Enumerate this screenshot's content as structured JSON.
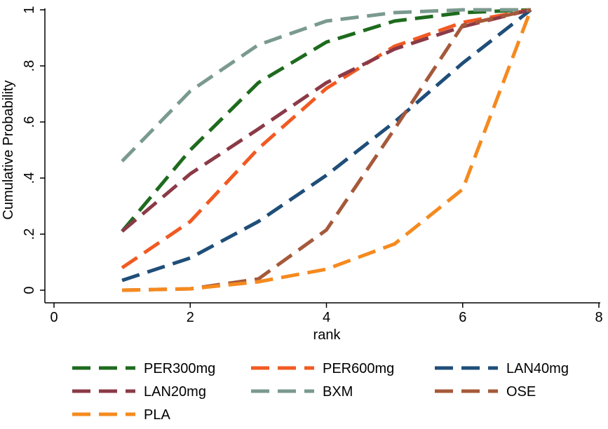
{
  "chart_data": {
    "type": "line",
    "xlabel": "rank",
    "ylabel": "Cumulative Probability",
    "xlim": [
      0,
      8
    ],
    "ylim": [
      0,
      1
    ],
    "xticks": [
      0,
      2,
      4,
      6,
      8
    ],
    "xtick_labels": [
      "0",
      "2",
      "4",
      "6",
      "8"
    ],
    "yticks": [
      0,
      0.2,
      0.4,
      0.6,
      0.8,
      1
    ],
    "ytick_labels": [
      "0",
      ".2",
      ".4",
      ".6",
      ".8",
      "1"
    ],
    "grid": false,
    "legend_position": "bottom",
    "line_style": "dashed",
    "x": [
      1,
      2,
      3,
      4,
      5,
      6,
      7
    ],
    "series": [
      {
        "name": "PER300mg",
        "color": "#1e6b1e",
        "values": [
          0.21,
          0.5,
          0.74,
          0.885,
          0.96,
          0.99,
          1.0
        ]
      },
      {
        "name": "PER600mg",
        "color": "#f15a22",
        "values": [
          0.08,
          0.245,
          0.505,
          0.72,
          0.87,
          0.955,
          1.0
        ]
      },
      {
        "name": "LAN40mg",
        "color": "#1f4e79",
        "values": [
          0.035,
          0.115,
          0.245,
          0.41,
          0.6,
          0.81,
          1.0
        ]
      },
      {
        "name": "LAN20mg",
        "color": "#8b3a47",
        "values": [
          0.21,
          0.415,
          0.575,
          0.74,
          0.86,
          0.94,
          1.0
        ]
      },
      {
        "name": "BXM",
        "color": "#7a9a8e",
        "values": [
          0.46,
          0.71,
          0.875,
          0.96,
          0.99,
          1.0,
          1.0
        ]
      },
      {
        "name": "OSE",
        "color": "#a5593a",
        "values": [
          0.0,
          0.005,
          0.04,
          0.215,
          0.575,
          0.945,
          1.0
        ]
      },
      {
        "name": "PLA",
        "color": "#f58a1f",
        "values": [
          0.0,
          0.005,
          0.03,
          0.075,
          0.165,
          0.36,
          1.0
        ]
      }
    ]
  }
}
